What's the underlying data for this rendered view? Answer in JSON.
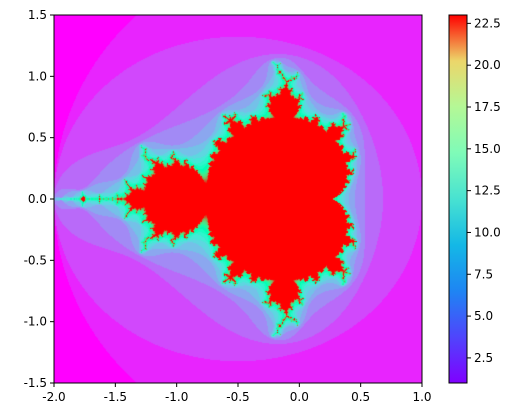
{
  "chart_data": {
    "type": "heatmap",
    "title": "",
    "xlabel": "",
    "ylabel": "",
    "xlim": [
      -2.0,
      1.0
    ],
    "ylim": [
      -1.5,
      1.5
    ],
    "x_ticks": [
      -2.0,
      -1.5,
      -1.0,
      -0.5,
      0.0,
      0.5,
      1.0
    ],
    "x_tick_labels": [
      "-2.0",
      "-1.5",
      "-1.0",
      "-0.5",
      "0.0",
      "0.5",
      "1.0"
    ],
    "y_ticks": [
      -1.5,
      -1.0,
      -0.5,
      0.0,
      0.5,
      1.0,
      1.5
    ],
    "y_tick_labels": [
      "-1.5",
      "-1.0",
      "-0.5",
      "0.0",
      "0.5",
      "1.0",
      "1.5"
    ],
    "z_quantity": "escape iteration count (Mandelbrot set)",
    "z_range": [
      1,
      23
    ],
    "max_iterations": 23,
    "colormap": "rainbow",
    "colorbar": {
      "position": "right",
      "ticks": [
        2.5,
        5.0,
        7.5,
        10.0,
        12.5,
        15.0,
        17.5,
        20.0,
        22.5
      ],
      "tick_labels": [
        "2.5",
        "5.0",
        "7.5",
        "10.0",
        "12.5",
        "15.0",
        "17.5",
        "20.0",
        "22.5"
      ]
    },
    "grid": false
  }
}
